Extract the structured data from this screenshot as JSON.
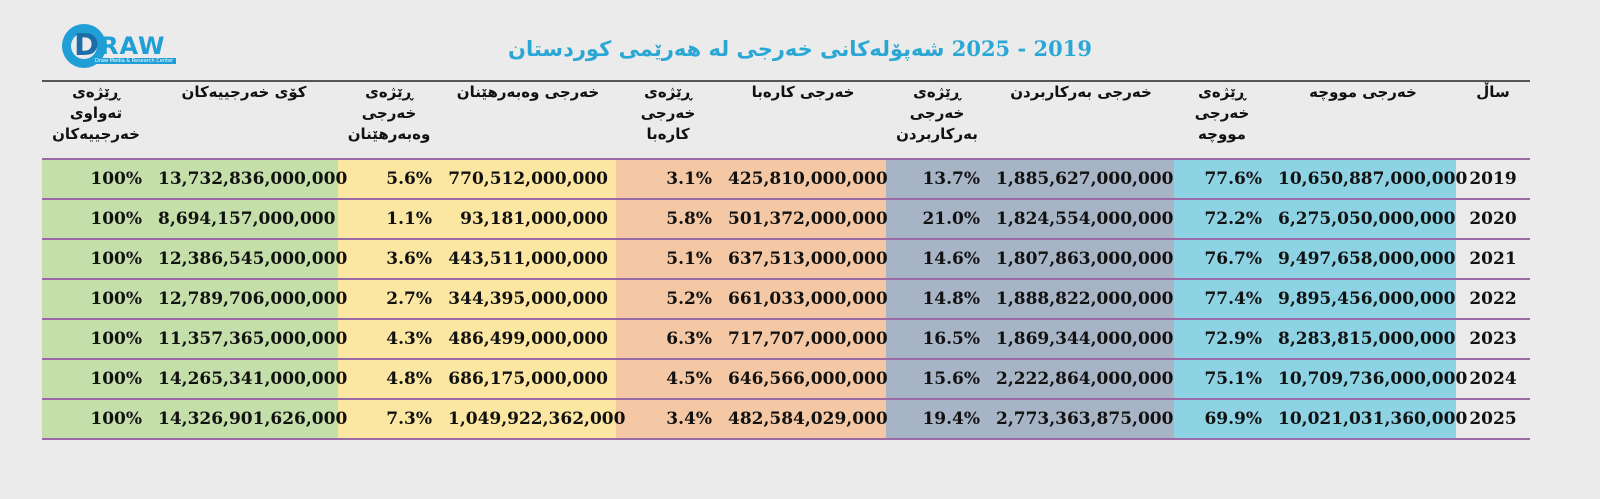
{
  "logo": {
    "text": "RAW",
    "letter": "D",
    "tagline": "Draw Media & Research Center"
  },
  "title": {
    "text": "شەپۆلەکانی خەرجی لە هەرێمی کوردستان",
    "years": "2025 - 2019"
  },
  "table": {
    "headers": {
      "total_pct": "ڕێژەی\nتەواوی\nخەرجییەکان",
      "total": "کۆی خەرجییەکان",
      "investment_pct": "ڕێژەی\nخەرجی\nوەبەرهێنان",
      "investment": "خەرجی وەبەرهێنان",
      "electricity_pct": "ڕێژەی\nخەرجی\nکارەبا",
      "electricity": "خەرجی کارەبا",
      "goods_pct": "ڕێژەی\nخەرجی\nبەرکاربردن",
      "goods": "خەرجی بەرکاربردن",
      "salary_pct": "ڕێژەی\nخەرجی\nمووچە",
      "salary": "خەرجی مووچە",
      "year": "ساڵ"
    },
    "rows": [
      {
        "year": "2019",
        "salary": "10,650,887,000,000",
        "salary_pct": "77.6%",
        "goods": "1,885,627,000,000",
        "goods_pct": "13.7%",
        "electricity": "425,810,000,000",
        "electricity_pct": "3.1%",
        "investment": "770,512,000,000",
        "investment_pct": "5.6%",
        "total": "13,732,836,000,000",
        "total_pct": "100%"
      },
      {
        "year": "2020",
        "salary": "6,275,050,000,000",
        "salary_pct": "72.2%",
        "goods": "1,824,554,000,000",
        "goods_pct": "21.0%",
        "electricity": "501,372,000,000",
        "electricity_pct": "5.8%",
        "investment": "93,181,000,000",
        "investment_pct": "1.1%",
        "total": "8,694,157,000,000",
        "total_pct": "100%"
      },
      {
        "year": "2021",
        "salary": "9,497,658,000,000",
        "salary_pct": "76.7%",
        "goods": "1,807,863,000,000",
        "goods_pct": "14.6%",
        "electricity": "637,513,000,000",
        "electricity_pct": "5.1%",
        "investment": "443,511,000,000",
        "investment_pct": "3.6%",
        "total": "12,386,545,000,000",
        "total_pct": "100%"
      },
      {
        "year": "2022",
        "salary": "9,895,456,000,000",
        "salary_pct": "77.4%",
        "goods": "1,888,822,000,000",
        "goods_pct": "14.8%",
        "electricity": "661,033,000,000",
        "electricity_pct": "5.2%",
        "investment": "344,395,000,000",
        "investment_pct": "2.7%",
        "total": "12,789,706,000,000",
        "total_pct": "100%"
      },
      {
        "year": "2023",
        "salary": "8,283,815,000,000",
        "salary_pct": "72.9%",
        "goods": "1,869,344,000,000",
        "goods_pct": "16.5%",
        "electricity": "717,707,000,000",
        "electricity_pct": "6.3%",
        "investment": "486,499,000,000",
        "investment_pct": "4.3%",
        "total": "11,357,365,000,000",
        "total_pct": "100%"
      },
      {
        "year": "2024",
        "salary": "10,709,736,000,000",
        "salary_pct": "75.1%",
        "goods": "2,222,864,000,000",
        "goods_pct": "15.6%",
        "electricity": "646,566,000,000",
        "electricity_pct": "4.5%",
        "investment": "686,175,000,000",
        "investment_pct": "4.8%",
        "total": "14,265,341,000,000",
        "total_pct": "100%"
      },
      {
        "year": "2025",
        "salary": "10,021,031,360,000",
        "salary_pct": "69.9%",
        "goods": "2,773,363,875,000",
        "goods_pct": "19.4%",
        "electricity": "482,584,029,000",
        "electricity_pct": "3.4%",
        "investment": "1,049,922,362,000",
        "investment_pct": "7.3%",
        "total": "14,326,901,626,000",
        "total_pct": "100%"
      }
    ]
  },
  "colors": {
    "salary": "#8dd3e3",
    "goods": "#a7b4c5",
    "electricity": "#f5c8a5",
    "investment": "#fbe6a2",
    "total": "#c4dfaa",
    "title": "#2ba7d6",
    "row_border": "#9b6aa8"
  }
}
